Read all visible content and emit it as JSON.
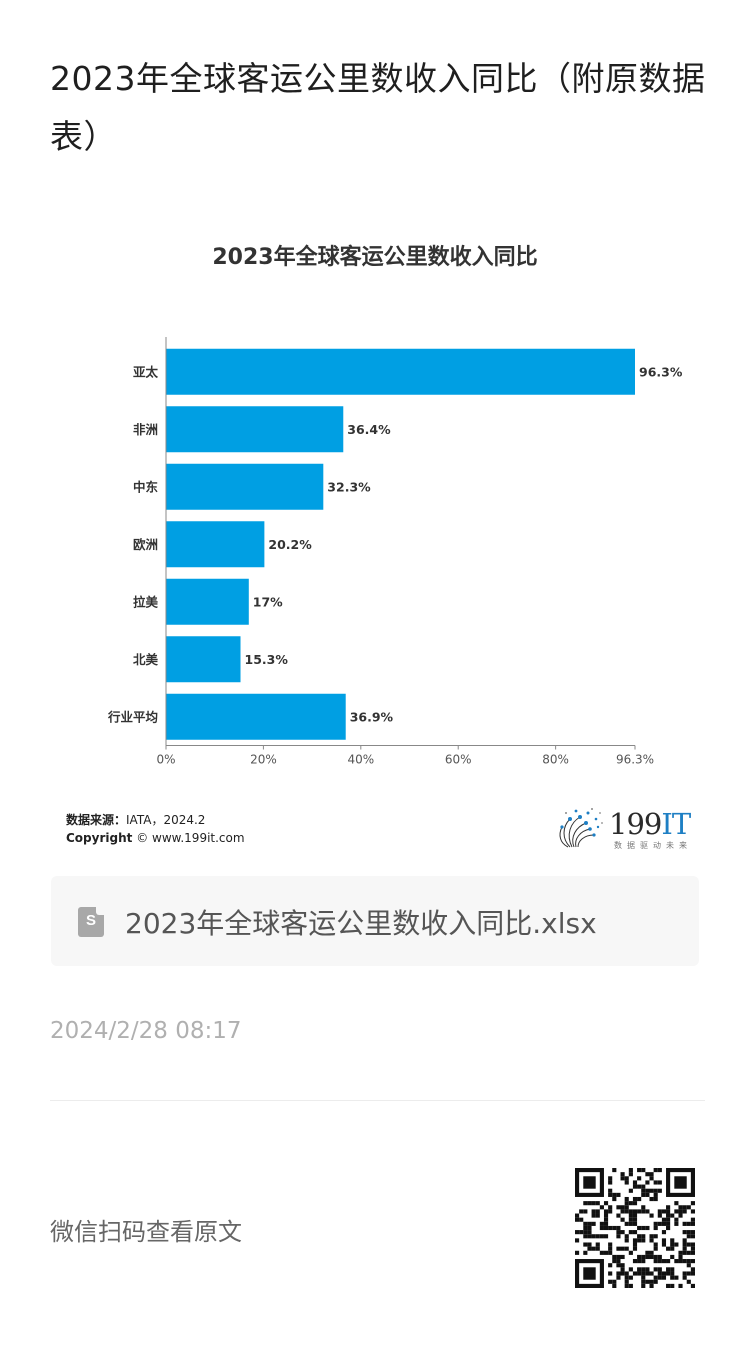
{
  "article": {
    "title": "2023年全球客运公里数收入同比（附原数据表）",
    "timestamp": "2024/2/28 08:17",
    "qr_label": "微信扫码查看原文"
  },
  "attachment": {
    "icon": "spreadsheet-file-icon",
    "icon_letter": "S",
    "filename": "2023年全球客运公里数收入同比.xlsx"
  },
  "source": {
    "label": "数据来源：",
    "text": "IATA，2024.2",
    "copyright_label": "Copyright",
    "copyright_text": "© www.199it.com"
  },
  "logo": {
    "text_num": "199",
    "text_it": "IT",
    "slogan": "数据驱动未来"
  },
  "colors": {
    "bar": "#009fe3",
    "axis": "#888888",
    "logo_blue": "#1e7fc4"
  },
  "chart_data": {
    "type": "bar",
    "orientation": "horizontal",
    "title": "2023年全球客运公里数收入同比",
    "categories": [
      "亚太",
      "非洲",
      "中东",
      "欧洲",
      "拉美",
      "北美",
      "行业平均"
    ],
    "values": [
      96.3,
      36.4,
      32.3,
      20.2,
      17,
      15.3,
      36.9
    ],
    "value_labels": [
      "96.3%",
      "36.4%",
      "32.3%",
      "20.2%",
      "17%",
      "15.3%",
      "36.9%"
    ],
    "x_ticks": [
      0,
      20,
      40,
      60,
      80,
      96.3
    ],
    "x_tick_labels": [
      "0%",
      "20%",
      "40%",
      "60%",
      "80%",
      "96.3%"
    ],
    "xlim": [
      0,
      96.3
    ],
    "grid": false,
    "legend": "none"
  }
}
